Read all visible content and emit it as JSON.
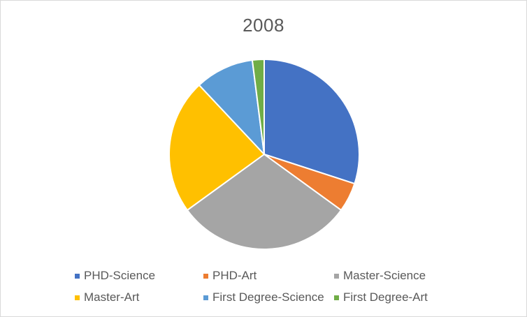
{
  "chart_data": {
    "type": "pie",
    "title": "2008",
    "legend_position": "bottom",
    "categories": [
      "PHD-Science",
      "PHD-Art",
      "Master-Science",
      "Master-Art",
      "First Degree-Science",
      "First Degree-Art"
    ],
    "values": [
      30,
      5,
      30,
      23,
      10,
      2
    ],
    "colors": [
      "#4472C4",
      "#ED7D31",
      "#A5A5A5",
      "#FFC000",
      "#5B9BD5",
      "#70AD47"
    ]
  }
}
